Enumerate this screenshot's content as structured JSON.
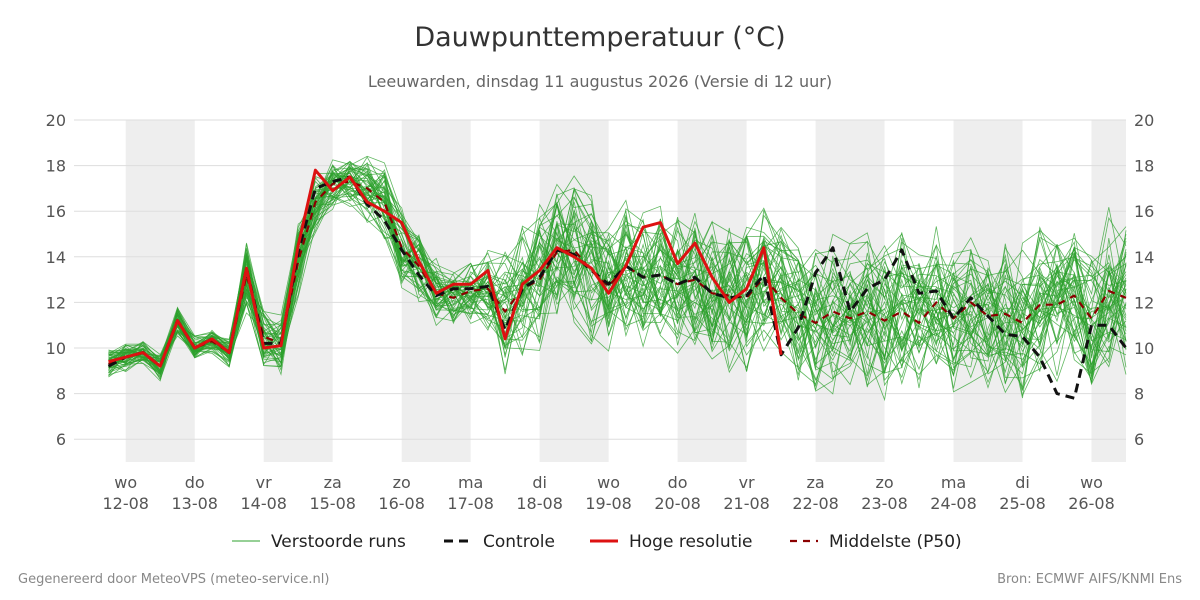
{
  "title": "Dauwpunttemperatuur (°C)",
  "subtitle": "Leeuwarden, dinsdag 11 augustus 2026 (Versie di 12 uur)",
  "footer": {
    "left": "Gegenereerd door MeteoVPS (meteo-service.nl)",
    "right": "Bron: ECMWF AIFS/KNMI Ens"
  },
  "colors": {
    "ensemble": "#2ca02c",
    "controle": "#111111",
    "hoge_resolutie": "#dd1111",
    "p50": "#8b0000",
    "shade": "#eeeeee",
    "grid": "#dddddd"
  },
  "chart_data": {
    "type": "line",
    "title": "Dauwpunttemperatuur (°C)",
    "xlabel": "",
    "ylabel": "",
    "ylim": [
      5,
      20
    ],
    "xlim": [
      -0.75,
      14.5
    ],
    "grid": true,
    "legend_position": "bottom",
    "y_ticks": [
      6,
      8,
      10,
      12,
      14,
      16,
      18,
      20
    ],
    "x_ticks": [
      {
        "x": 0,
        "day": "wo",
        "date": "12-08"
      },
      {
        "x": 1,
        "day": "do",
        "date": "13-08"
      },
      {
        "x": 2,
        "day": "vr",
        "date": "14-08"
      },
      {
        "x": 3,
        "day": "za",
        "date": "15-08"
      },
      {
        "x": 4,
        "day": "zo",
        "date": "16-08"
      },
      {
        "x": 5,
        "day": "ma",
        "date": "17-08"
      },
      {
        "x": 6,
        "day": "di",
        "date": "18-08"
      },
      {
        "x": 7,
        "day": "wo",
        "date": "19-08"
      },
      {
        "x": 8,
        "day": "do",
        "date": "20-08"
      },
      {
        "x": 9,
        "day": "vr",
        "date": "21-08"
      },
      {
        "x": 10,
        "day": "za",
        "date": "22-08"
      },
      {
        "x": 11,
        "day": "zo",
        "date": "23-08"
      },
      {
        "x": 12,
        "day": "ma",
        "date": "24-08"
      },
      {
        "x": 13,
        "day": "di",
        "date": "25-08"
      },
      {
        "x": 14,
        "day": "wo",
        "date": "26-08"
      }
    ],
    "shaded_days": [
      0,
      2,
      4,
      6,
      8,
      10,
      12,
      14
    ],
    "legend": [
      "Verstoorde runs",
      "Controle",
      "Hoge resolutie",
      "Middelste (P50)"
    ],
    "series": [
      {
        "name": "Controle",
        "style": "dashed",
        "x": [
          -0.25,
          0,
          0.25,
          0.5,
          0.75,
          1,
          1.25,
          1.5,
          1.75,
          2,
          2.25,
          2.5,
          2.75,
          3,
          3.25,
          3.5,
          3.75,
          4,
          4.25,
          4.5,
          4.75,
          5,
          5.25,
          5.5,
          5.75,
          6,
          6.25,
          6.5,
          6.75,
          7,
          7.25,
          7.5,
          7.75,
          8,
          8.25,
          8.5,
          8.75,
          9,
          9.25,
          9.5,
          9.75,
          10,
          10.25,
          10.5,
          10.75,
          11,
          11.25,
          11.5,
          11.75,
          12,
          12.25,
          12.5,
          12.75,
          13,
          13.25,
          13.5,
          13.75,
          14,
          14.25,
          14.5
        ],
        "y": [
          9.2,
          9.6,
          9.8,
          9.2,
          11.2,
          10.0,
          10.4,
          9.8,
          13.5,
          10.2,
          10.2,
          14.2,
          17.0,
          17.3,
          17.5,
          16.3,
          15.6,
          14.3,
          13.2,
          12.3,
          12.6,
          12.6,
          12.7,
          10.8,
          12.6,
          13.1,
          14.3,
          14.1,
          13.4,
          12.8,
          13.6,
          13.1,
          13.2,
          12.8,
          13.1,
          12.4,
          12.2,
          12.3,
          13.2,
          9.7,
          10.9,
          13.3,
          14.4,
          11.6,
          12.6,
          13.0,
          14.3,
          12.4,
          12.5,
          11.3,
          12.2,
          11.4,
          10.6,
          10.5,
          9.6,
          8.0,
          7.8,
          11.0,
          11.0,
          10.0
        ]
      },
      {
        "name": "Hoge resolutie",
        "style": "solid",
        "x": [
          -0.25,
          0,
          0.25,
          0.5,
          0.75,
          1,
          1.25,
          1.5,
          1.75,
          2,
          2.25,
          2.5,
          2.75,
          3,
          3.25,
          3.5,
          3.75,
          4,
          4.25,
          4.5,
          4.75,
          5,
          5.25,
          5.5,
          5.75,
          6,
          6.25,
          6.5,
          6.75,
          7,
          7.25,
          7.5,
          7.75,
          8,
          8.25,
          8.5,
          8.75,
          9,
          9.25,
          9.5
        ],
        "y": [
          9.4,
          9.6,
          9.8,
          9.2,
          11.2,
          10.0,
          10.4,
          9.8,
          13.5,
          10.0,
          10.1,
          14.5,
          17.8,
          16.9,
          17.5,
          16.4,
          16.0,
          15.5,
          13.8,
          12.4,
          12.8,
          12.8,
          13.4,
          10.4,
          12.8,
          13.4,
          14.4,
          14.0,
          13.5,
          12.4,
          13.6,
          15.3,
          15.5,
          13.7,
          14.6,
          13.1,
          12.0,
          12.6,
          14.4,
          9.7
        ]
      },
      {
        "name": "Middelste (P50)",
        "style": "dashed",
        "x": [
          -0.25,
          0,
          0.25,
          0.5,
          0.75,
          1,
          1.25,
          1.5,
          1.75,
          2,
          2.25,
          2.5,
          2.75,
          3,
          3.25,
          3.5,
          3.75,
          4,
          4.25,
          4.5,
          4.75,
          5,
          5.25,
          5.5,
          5.75,
          6,
          6.25,
          6.5,
          6.75,
          7,
          7.25,
          7.5,
          7.75,
          8,
          8.25,
          8.5,
          8.75,
          9,
          9.25,
          9.5,
          9.75,
          10,
          10.25,
          10.5,
          10.75,
          11,
          11.25,
          11.5,
          11.75,
          12,
          12.25,
          12.5,
          12.75,
          13,
          13.25,
          13.5,
          13.75,
          14,
          14.25,
          14.5
        ],
        "y": [
          9.3,
          9.6,
          9.8,
          9.2,
          11.2,
          10.0,
          10.3,
          9.8,
          13.2,
          10.5,
          10.2,
          13.8,
          16.4,
          17.2,
          17.3,
          17.0,
          16.4,
          14.4,
          13.6,
          12.4,
          12.2,
          12.5,
          12.6,
          11.6,
          12.6,
          13.0,
          14.2,
          14.3,
          13.4,
          12.7,
          13.6,
          13.1,
          13.2,
          12.8,
          13.0,
          12.4,
          12.3,
          12.2,
          13.1,
          12.2,
          11.5,
          11.1,
          11.6,
          11.3,
          11.6,
          11.2,
          11.6,
          11.1,
          12.0,
          11.3,
          12.0,
          11.4,
          11.5,
          11.1,
          11.9,
          11.9,
          12.3,
          11.3,
          12.5,
          12.2
        ]
      }
    ],
    "ensemble": {
      "name": "Verstoorde runs",
      "members": 50,
      "x": [
        -0.25,
        0,
        0.25,
        0.5,
        0.75,
        1,
        1.25,
        1.5,
        1.75,
        2,
        2.25,
        2.5,
        2.75,
        3,
        3.25,
        3.5,
        3.75,
        4,
        4.25,
        4.5,
        4.75,
        5,
        5.25,
        5.5,
        5.75,
        6,
        6.25,
        6.5,
        6.75,
        7,
        7.25,
        7.5,
        7.75,
        8,
        8.25,
        8.5,
        8.75,
        9,
        9.25,
        9.5,
        9.75,
        10,
        10.25,
        10.5,
        10.75,
        11,
        11.25,
        11.5,
        11.75,
        12,
        12.25,
        12.5,
        12.75,
        13,
        13.25,
        13.5,
        13.75,
        14,
        14.25,
        14.5
      ],
      "p50": [
        9.3,
        9.6,
        9.8,
        9.2,
        11.2,
        10.0,
        10.3,
        9.8,
        13.2,
        10.5,
        10.2,
        13.8,
        16.4,
        17.2,
        17.3,
        17.0,
        16.4,
        14.4,
        13.6,
        12.4,
        12.2,
        12.5,
        12.6,
        11.6,
        12.6,
        13.0,
        14.2,
        14.3,
        13.4,
        12.7,
        13.6,
        13.1,
        13.2,
        12.8,
        13.0,
        12.4,
        12.3,
        12.2,
        13.1,
        12.2,
        11.5,
        11.1,
        11.6,
        11.3,
        11.6,
        11.2,
        11.6,
        11.1,
        12.0,
        11.3,
        12.0,
        11.4,
        11.5,
        11.1,
        11.9,
        11.9,
        12.3,
        11.3,
        12.5,
        12.2
      ],
      "spread": [
        0.5,
        0.5,
        0.4,
        0.5,
        0.5,
        0.4,
        0.4,
        0.5,
        1.2,
        1.0,
        1.0,
        1.2,
        1.0,
        0.9,
        0.9,
        1.1,
        1.3,
        1.4,
        1.3,
        1.1,
        1.1,
        1.1,
        1.5,
        2.2,
        2.3,
        2.5,
        2.5,
        2.5,
        2.5,
        2.4,
        2.4,
        2.5,
        2.5,
        2.5,
        2.5,
        2.4,
        2.5,
        2.6,
        2.6,
        2.6,
        2.6,
        2.6,
        2.6,
        2.6,
        2.6,
        2.6,
        2.6,
        2.6,
        2.6,
        2.6,
        2.6,
        2.7,
        2.7,
        2.7,
        2.7,
        2.7,
        2.7,
        2.7,
        2.7,
        2.7
      ]
    }
  }
}
